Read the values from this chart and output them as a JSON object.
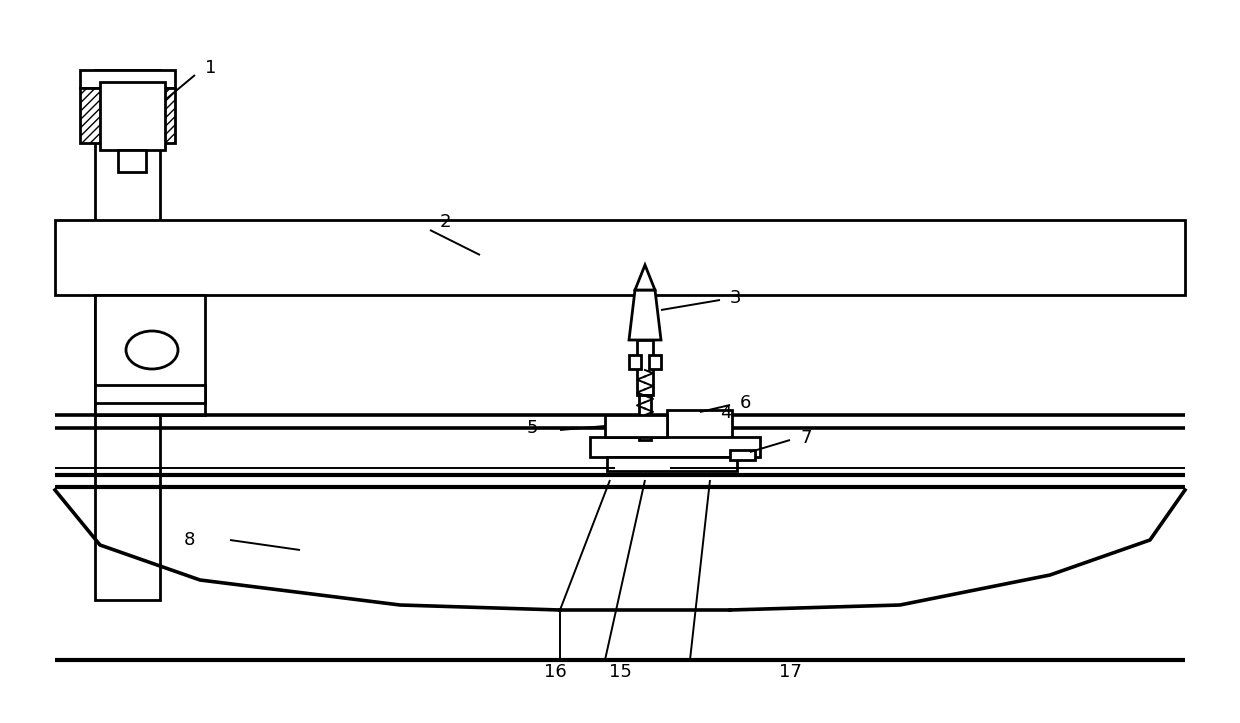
{
  "bg_color": "#ffffff",
  "line_color": "#000000",
  "figsize": [
    12.4,
    7.23
  ],
  "dpi": 100,
  "lw_main": 2.0,
  "lw_thin": 1.4,
  "label_fs": 13
}
